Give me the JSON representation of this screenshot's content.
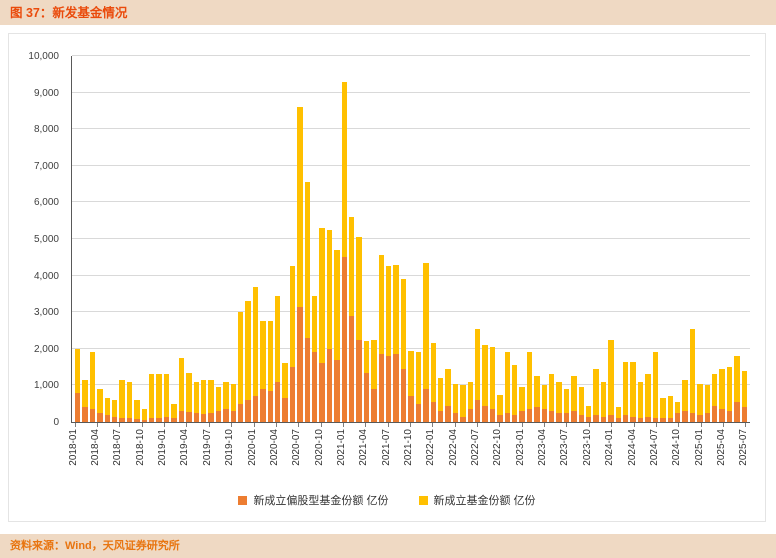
{
  "header": {
    "title": "图 37：新发基金情况"
  },
  "footer": {
    "source": "资料来源：Wind，天风证券研究所"
  },
  "legend": [
    {
      "label": "新成立偏股型基金份额 亿份",
      "color": "#ed7d31"
    },
    {
      "label": "新成立基金份额 亿份",
      "color": "#ffc000"
    }
  ],
  "chart_data": {
    "type": "bar",
    "title": "新发基金情况",
    "ylabel": "亿份",
    "ylim": [
      0,
      10000
    ],
    "y_tick_step": 1000,
    "y_tick_labels": [
      "0",
      "1,000",
      "2,000",
      "3,000",
      "4,000",
      "5,000",
      "6,000",
      "7,000",
      "8,000",
      "9,000",
      "10,000"
    ],
    "x_tick_every": 3,
    "grid": true,
    "legend_position": "bottom",
    "overlay_note": "orange equity series drawn in front of yellow total series from baseline",
    "categories": [
      "2018-01",
      "2018-02",
      "2018-03",
      "2018-04",
      "2018-05",
      "2018-06",
      "2018-07",
      "2018-08",
      "2018-09",
      "2018-10",
      "2018-11",
      "2018-12",
      "2019-01",
      "2019-02",
      "2019-03",
      "2019-04",
      "2019-05",
      "2019-06",
      "2019-07",
      "2019-08",
      "2019-09",
      "2019-10",
      "2019-11",
      "2019-12",
      "2020-01",
      "2020-02",
      "2020-03",
      "2020-04",
      "2020-05",
      "2020-06",
      "2020-07",
      "2020-08",
      "2020-09",
      "2020-10",
      "2020-11",
      "2020-12",
      "2021-01",
      "2021-02",
      "2021-03",
      "2021-04",
      "2021-05",
      "2021-06",
      "2021-07",
      "2021-08",
      "2021-09",
      "2021-10",
      "2021-11",
      "2021-12",
      "2022-01",
      "2022-02",
      "2022-03",
      "2022-04",
      "2022-05",
      "2022-06",
      "2022-07",
      "2022-08",
      "2022-09",
      "2022-10",
      "2022-11",
      "2022-12",
      "2023-01",
      "2023-02",
      "2023-03",
      "2023-04",
      "2023-05",
      "2023-06",
      "2023-07",
      "2023-08",
      "2023-09",
      "2023-10",
      "2023-11",
      "2023-12",
      "2024-01",
      "2024-02",
      "2024-03",
      "2024-04",
      "2024-05",
      "2024-06",
      "2024-07",
      "2024-08",
      "2024-09",
      "2024-10",
      "2024-11",
      "2024-12",
      "2025-01",
      "2025-02",
      "2025-03",
      "2025-04",
      "2025-05",
      "2025-06",
      "2025-07"
    ],
    "series": [
      {
        "name": "新成立偏股型基金份额 亿份",
        "color": "#ed7d31",
        "values": [
          800,
          400,
          350,
          250,
          200,
          150,
          120,
          100,
          80,
          60,
          100,
          120,
          150,
          100,
          300,
          280,
          250,
          220,
          250,
          300,
          350,
          300,
          500,
          600,
          700,
          900,
          850,
          1100,
          650,
          1500,
          3150,
          2300,
          1900,
          1600,
          2000,
          1700,
          4500,
          2900,
          2250,
          1350,
          900,
          1850,
          1800,
          1850,
          1450,
          700,
          500,
          900,
          550,
          300,
          450,
          250,
          150,
          350,
          600,
          450,
          350,
          200,
          250,
          200,
          300,
          350,
          400,
          350,
          300,
          250,
          250,
          300,
          200,
          150,
          200,
          150,
          200,
          100,
          200,
          150,
          100,
          150,
          100,
          100,
          100,
          250,
          300,
          250,
          200,
          250,
          450,
          350,
          300,
          550,
          400
        ]
      },
      {
        "name": "新成立基金份额 亿份",
        "color": "#ffc000",
        "values": [
          2000,
          1150,
          1900,
          900,
          650,
          600,
          1150,
          1100,
          600,
          350,
          1300,
          1300,
          1300,
          500,
          1750,
          1350,
          1100,
          1150,
          1150,
          950,
          1100,
          1050,
          3000,
          3300,
          3700,
          2750,
          2750,
          3450,
          1600,
          4250,
          8600,
          6550,
          3450,
          5300,
          5250,
          4700,
          9300,
          5600,
          5050,
          2200,
          2250,
          4550,
          4250,
          4300,
          3900,
          1950,
          1900,
          4350,
          2150,
          1200,
          1450,
          1050,
          1000,
          1100,
          2550,
          2100,
          2050,
          750,
          1900,
          1550,
          950,
          1900,
          1250,
          1000,
          1300,
          1100,
          900,
          1250,
          950,
          450,
          1450,
          1100,
          2250,
          400,
          1650,
          1650,
          1100,
          1300,
          1900,
          650,
          700,
          550,
          1150,
          2550,
          1050,
          1000,
          1300,
          1450,
          1500,
          1800,
          1400
        ]
      }
    ]
  }
}
